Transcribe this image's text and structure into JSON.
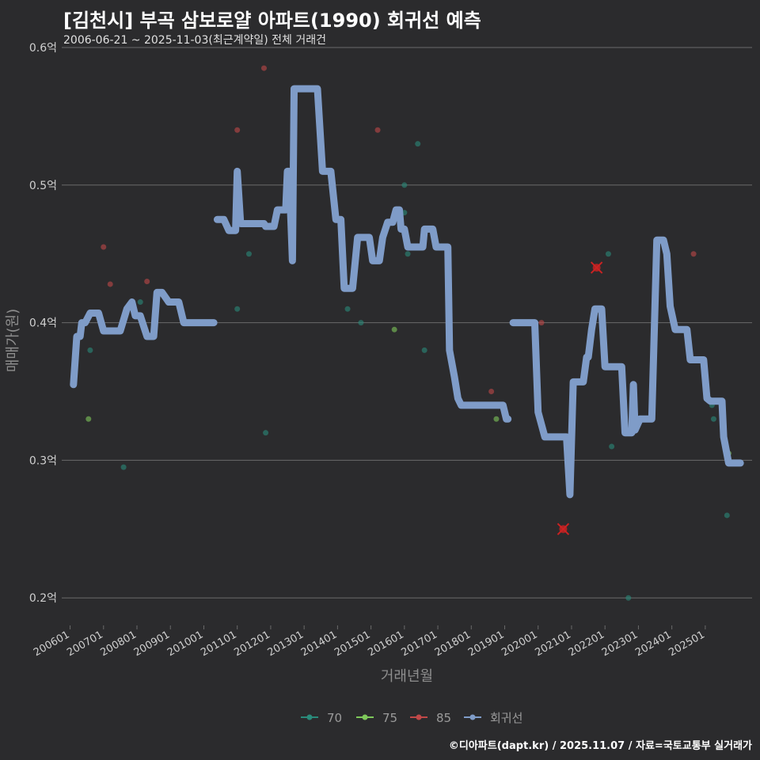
{
  "title": "[김천시] 부곡 삼보로얄 아파트(1990) 회귀선 예측",
  "subtitle": "2006-06-21 ~ 2025-11-03(최근계약일) 전체 거래건",
  "footer": "©디아파트(dapt.kr) / 2025.11.07 / 자료=국토교통부 실거래가",
  "colors": {
    "background": "#2b2b2d",
    "grid": "#6a6a6a",
    "s70": "#2a8a7a",
    "s75": "#7ec85a",
    "s85": "#c04848",
    "regression": "#7f9cc8",
    "cancelled": "#cc2222"
  },
  "chart_data": {
    "type": "scatter+line",
    "xlabel": "거래년월",
    "ylabel": "매매가(원)",
    "xlim": [
      2005.75,
      2026.4
    ],
    "ylim": [
      0.18,
      0.6
    ],
    "grid": true,
    "legend_position": "bottom",
    "yticks": [
      {
        "v": 0.2,
        "label": "0.2억"
      },
      {
        "v": 0.3,
        "label": "0.3억"
      },
      {
        "v": 0.4,
        "label": "0.4억"
      },
      {
        "v": 0.5,
        "label": "0.5억"
      },
      {
        "v": 0.6,
        "label": "0.6억"
      }
    ],
    "xticks": [
      {
        "v": 2006.0,
        "label": "200601"
      },
      {
        "v": 2007.0,
        "label": "200701"
      },
      {
        "v": 2008.0,
        "label": "200801"
      },
      {
        "v": 2009.0,
        "label": "200901"
      },
      {
        "v": 2010.0,
        "label": "201001"
      },
      {
        "v": 2011.0,
        "label": "201101"
      },
      {
        "v": 2012.0,
        "label": "201201"
      },
      {
        "v": 2013.0,
        "label": "201301"
      },
      {
        "v": 2014.0,
        "label": "201401"
      },
      {
        "v": 2015.0,
        "label": "201501"
      },
      {
        "v": 2016.0,
        "label": "201601"
      },
      {
        "v": 2017.0,
        "label": "201701"
      },
      {
        "v": 2018.0,
        "label": "201801"
      },
      {
        "v": 2019.0,
        "label": "201901"
      },
      {
        "v": 2020.0,
        "label": "202001"
      },
      {
        "v": 2021.0,
        "label": "202101"
      },
      {
        "v": 2022.0,
        "label": "202201"
      },
      {
        "v": 2023.0,
        "label": "202301"
      },
      {
        "v": 2024.0,
        "label": "202401"
      },
      {
        "v": 2025.0,
        "label": "202501"
      }
    ],
    "legend": [
      {
        "key": "s70",
        "label": "70"
      },
      {
        "key": "s75",
        "label": "75"
      },
      {
        "key": "s85",
        "label": "85"
      },
      {
        "key": "regression",
        "label": "회귀선"
      }
    ],
    "points": {
      "s70": [
        [
          2006.6,
          0.38
        ],
        [
          2007.6,
          0.295
        ],
        [
          2008.1,
          0.415
        ],
        [
          2011.0,
          0.41
        ],
        [
          2011.35,
          0.45
        ],
        [
          2011.85,
          0.32
        ],
        [
          2014.3,
          0.41
        ],
        [
          2014.7,
          0.4
        ],
        [
          2016.0,
          0.48
        ],
        [
          2016.0,
          0.5
        ],
        [
          2016.1,
          0.45
        ],
        [
          2016.4,
          0.53
        ],
        [
          2016.6,
          0.38
        ],
        [
          2022.1,
          0.45
        ],
        [
          2022.2,
          0.31
        ],
        [
          2022.7,
          0.2
        ],
        [
          2025.2,
          0.34
        ],
        [
          2025.25,
          0.33
        ],
        [
          2025.65,
          0.26
        ]
      ],
      "s75": [
        [
          2006.55,
          0.33
        ],
        [
          2015.7,
          0.395
        ],
        [
          2018.75,
          0.33
        ],
        [
          2025.7,
          0.305
        ]
      ],
      "s85": [
        [
          2007.0,
          0.455
        ],
        [
          2007.2,
          0.428
        ],
        [
          2008.3,
          0.43
        ],
        [
          2011.0,
          0.54
        ],
        [
          2011.8,
          0.585
        ],
        [
          2015.2,
          0.54
        ],
        [
          2018.6,
          0.35
        ],
        [
          2020.1,
          0.4
        ],
        [
          2024.65,
          0.45
        ]
      ]
    },
    "cancelled": [
      [
        2020.75,
        0.25
      ],
      [
        2021.75,
        0.44
      ]
    ],
    "regression_segments": [
      [
        [
          2006.1,
          0.355
        ],
        [
          2006.2,
          0.39
        ],
        [
          2006.3,
          0.39
        ],
        [
          2006.35,
          0.4
        ],
        [
          2006.45,
          0.4
        ],
        [
          2006.6,
          0.407
        ],
        [
          2006.85,
          0.407
        ],
        [
          2007.0,
          0.394
        ],
        [
          2007.5,
          0.394
        ],
        [
          2007.7,
          0.41
        ],
        [
          2007.85,
          0.415
        ],
        [
          2007.95,
          0.405
        ],
        [
          2008.1,
          0.405
        ],
        [
          2008.3,
          0.39
        ],
        [
          2008.5,
          0.39
        ],
        [
          2008.6,
          0.422
        ],
        [
          2008.75,
          0.422
        ],
        [
          2008.95,
          0.415
        ],
        [
          2009.25,
          0.415
        ],
        [
          2009.4,
          0.4
        ],
        [
          2010.3,
          0.4
        ]
      ],
      [
        [
          2010.4,
          0.475
        ],
        [
          2010.6,
          0.475
        ],
        [
          2010.75,
          0.467
        ],
        [
          2010.95,
          0.467
        ],
        [
          2011.0,
          0.51
        ],
        [
          2011.1,
          0.472
        ],
        [
          2011.8,
          0.472
        ],
        [
          2011.85,
          0.47
        ],
        [
          2012.1,
          0.47
        ],
        [
          2012.2,
          0.482
        ],
        [
          2012.45,
          0.482
        ],
        [
          2012.5,
          0.51
        ],
        [
          2012.55,
          0.51
        ],
        [
          2012.65,
          0.445
        ],
        [
          2012.7,
          0.57
        ],
        [
          2013.4,
          0.57
        ],
        [
          2013.55,
          0.51
        ],
        [
          2013.8,
          0.51
        ],
        [
          2013.95,
          0.475
        ],
        [
          2014.1,
          0.475
        ],
        [
          2014.2,
          0.425
        ],
        [
          2014.45,
          0.425
        ],
        [
          2014.6,
          0.462
        ],
        [
          2014.95,
          0.462
        ],
        [
          2015.05,
          0.445
        ],
        [
          2015.25,
          0.445
        ],
        [
          2015.35,
          0.462
        ],
        [
          2015.5,
          0.473
        ],
        [
          2015.65,
          0.473
        ],
        [
          2015.75,
          0.482
        ],
        [
          2015.85,
          0.482
        ],
        [
          2015.9,
          0.468
        ],
        [
          2016.0,
          0.468
        ],
        [
          2016.1,
          0.455
        ],
        [
          2016.55,
          0.455
        ],
        [
          2016.6,
          0.468
        ],
        [
          2016.85,
          0.468
        ],
        [
          2016.95,
          0.455
        ],
        [
          2017.3,
          0.455
        ],
        [
          2017.35,
          0.38
        ],
        [
          2017.5,
          0.36
        ],
        [
          2017.6,
          0.345
        ],
        [
          2017.7,
          0.34
        ],
        [
          2018.95,
          0.34
        ],
        [
          2019.05,
          0.33
        ],
        [
          2019.1,
          0.33
        ]
      ],
      [
        [
          2019.25,
          0.4
        ],
        [
          2019.9,
          0.4
        ],
        [
          2020.0,
          0.335
        ],
        [
          2020.2,
          0.317
        ],
        [
          2020.85,
          0.317
        ],
        [
          2020.95,
          0.275
        ],
        [
          2021.05,
          0.357
        ],
        [
          2021.35,
          0.357
        ],
        [
          2021.45,
          0.375
        ],
        [
          2021.5,
          0.375
        ],
        [
          2021.6,
          0.395
        ],
        [
          2021.7,
          0.41
        ],
        [
          2021.9,
          0.41
        ],
        [
          2022.0,
          0.368
        ],
        [
          2022.5,
          0.368
        ],
        [
          2022.6,
          0.32
        ],
        [
          2022.8,
          0.32
        ],
        [
          2022.85,
          0.355
        ],
        [
          2022.9,
          0.322
        ],
        [
          2023.05,
          0.33
        ],
        [
          2023.4,
          0.33
        ],
        [
          2023.55,
          0.46
        ],
        [
          2023.75,
          0.46
        ],
        [
          2023.85,
          0.45
        ],
        [
          2023.95,
          0.412
        ],
        [
          2024.1,
          0.395
        ],
        [
          2024.45,
          0.395
        ],
        [
          2024.55,
          0.373
        ],
        [
          2024.95,
          0.373
        ],
        [
          2025.05,
          0.345
        ],
        [
          2025.15,
          0.343
        ],
        [
          2025.5,
          0.343
        ],
        [
          2025.55,
          0.317
        ],
        [
          2025.7,
          0.298
        ],
        [
          2026.05,
          0.298
        ]
      ]
    ]
  }
}
